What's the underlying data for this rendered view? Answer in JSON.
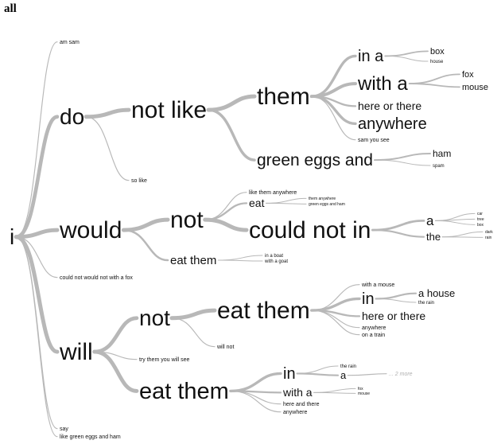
{
  "title": "all",
  "nodes": [
    {
      "id": "root",
      "label": "i"
    },
    {
      "id": "n1",
      "label": "am sam"
    },
    {
      "id": "n2",
      "label": "do"
    },
    {
      "id": "n3",
      "label": "not like"
    },
    {
      "id": "n4",
      "label": "them"
    },
    {
      "id": "n5",
      "label": "in a"
    },
    {
      "id": "n6",
      "label": "box"
    },
    {
      "id": "n7",
      "label": "house"
    },
    {
      "id": "n8",
      "label": "with a"
    },
    {
      "id": "n9",
      "label": "fox"
    },
    {
      "id": "n10",
      "label": "mouse"
    },
    {
      "id": "n11",
      "label": "here or there"
    },
    {
      "id": "n12",
      "label": "anywhere"
    },
    {
      "id": "n13",
      "label": "sam you see"
    },
    {
      "id": "n14",
      "label": "green eggs and"
    },
    {
      "id": "n15",
      "label": "ham"
    },
    {
      "id": "n16",
      "label": "spam"
    },
    {
      "id": "n17",
      "label": "so like"
    },
    {
      "id": "n18",
      "label": "would"
    },
    {
      "id": "n19",
      "label": "not"
    },
    {
      "id": "n20",
      "label": "like them anywhere"
    },
    {
      "id": "n21",
      "label": "eat"
    },
    {
      "id": "n22",
      "label": "them anywhere"
    },
    {
      "id": "n23",
      "label": "green eggs and ham"
    },
    {
      "id": "n24",
      "label": "could not in"
    },
    {
      "id": "n25",
      "label": "a"
    },
    {
      "id": "n26",
      "label": "car"
    },
    {
      "id": "n27",
      "label": "tree"
    },
    {
      "id": "n28",
      "label": "box"
    },
    {
      "id": "n29",
      "label": "the"
    },
    {
      "id": "n30",
      "label": "dark"
    },
    {
      "id": "n31",
      "label": "rain"
    },
    {
      "id": "n32",
      "label": "eat them"
    },
    {
      "id": "n33",
      "label": "in a boat"
    },
    {
      "id": "n34",
      "label": "with a goat"
    },
    {
      "id": "n35",
      "label": "could not would not with a fox"
    },
    {
      "id": "n36",
      "label": "will"
    },
    {
      "id": "n37",
      "label": "not"
    },
    {
      "id": "n38",
      "label": "eat them"
    },
    {
      "id": "n39",
      "label": "with a mouse"
    },
    {
      "id": "n40",
      "label": "in"
    },
    {
      "id": "n41",
      "label": "a house"
    },
    {
      "id": "n42",
      "label": "the rain"
    },
    {
      "id": "n43",
      "label": "here or there"
    },
    {
      "id": "n44",
      "label": "anywhere"
    },
    {
      "id": "n45",
      "label": "on a train"
    },
    {
      "id": "n46",
      "label": "will not"
    },
    {
      "id": "n47",
      "label": "try them you will see"
    },
    {
      "id": "n48",
      "label": "eat them"
    },
    {
      "id": "n49",
      "label": "in"
    },
    {
      "id": "n50",
      "label": "the rain"
    },
    {
      "id": "n51",
      "label": "a"
    },
    {
      "id": "n52",
      "label": "... 2 more"
    },
    {
      "id": "n53",
      "label": "with a"
    },
    {
      "id": "n54",
      "label": "fox"
    },
    {
      "id": "n55",
      "label": "mouse"
    },
    {
      "id": "n56",
      "label": "here and there"
    },
    {
      "id": "n57",
      "label": "anywhere"
    },
    {
      "id": "n58",
      "label": "say"
    },
    {
      "id": "n59",
      "label": "like green eggs and ham"
    }
  ],
  "edges": [
    {
      "from": "root",
      "to": "n1"
    },
    {
      "from": "root",
      "to": "n2"
    },
    {
      "from": "root",
      "to": "n18"
    },
    {
      "from": "root",
      "to": "n35"
    },
    {
      "from": "root",
      "to": "n36"
    },
    {
      "from": "root",
      "to": "n58"
    },
    {
      "from": "root",
      "to": "n59"
    },
    {
      "from": "n2",
      "to": "n3"
    },
    {
      "from": "n2",
      "to": "n17"
    },
    {
      "from": "n3",
      "to": "n4"
    },
    {
      "from": "n3",
      "to": "n14"
    },
    {
      "from": "n4",
      "to": "n5"
    },
    {
      "from": "n4",
      "to": "n8"
    },
    {
      "from": "n4",
      "to": "n11"
    },
    {
      "from": "n4",
      "to": "n12"
    },
    {
      "from": "n4",
      "to": "n13"
    },
    {
      "from": "n5",
      "to": "n6"
    },
    {
      "from": "n5",
      "to": "n7"
    },
    {
      "from": "n8",
      "to": "n9"
    },
    {
      "from": "n8",
      "to": "n10"
    },
    {
      "from": "n14",
      "to": "n15"
    },
    {
      "from": "n14",
      "to": "n16"
    },
    {
      "from": "n18",
      "to": "n19"
    },
    {
      "from": "n18",
      "to": "n32"
    },
    {
      "from": "n19",
      "to": "n20"
    },
    {
      "from": "n19",
      "to": "n21"
    },
    {
      "from": "n19",
      "to": "n24"
    },
    {
      "from": "n21",
      "to": "n22"
    },
    {
      "from": "n21",
      "to": "n23"
    },
    {
      "from": "n24",
      "to": "n25"
    },
    {
      "from": "n24",
      "to": "n29"
    },
    {
      "from": "n25",
      "to": "n26"
    },
    {
      "from": "n25",
      "to": "n27"
    },
    {
      "from": "n25",
      "to": "n28"
    },
    {
      "from": "n29",
      "to": "n30"
    },
    {
      "from": "n29",
      "to": "n31"
    },
    {
      "from": "n32",
      "to": "n33"
    },
    {
      "from": "n32",
      "to": "n34"
    },
    {
      "from": "n36",
      "to": "n37"
    },
    {
      "from": "n36",
      "to": "n47"
    },
    {
      "from": "n36",
      "to": "n48"
    },
    {
      "from": "n37",
      "to": "n38"
    },
    {
      "from": "n37",
      "to": "n46"
    },
    {
      "from": "n38",
      "to": "n39"
    },
    {
      "from": "n38",
      "to": "n40"
    },
    {
      "from": "n38",
      "to": "n43"
    },
    {
      "from": "n38",
      "to": "n44"
    },
    {
      "from": "n38",
      "to": "n45"
    },
    {
      "from": "n40",
      "to": "n41"
    },
    {
      "from": "n40",
      "to": "n42"
    },
    {
      "from": "n48",
      "to": "n49"
    },
    {
      "from": "n48",
      "to": "n53"
    },
    {
      "from": "n48",
      "to": "n56"
    },
    {
      "from": "n48",
      "to": "n57"
    },
    {
      "from": "n49",
      "to": "n50"
    },
    {
      "from": "n49",
      "to": "n51"
    },
    {
      "from": "n51",
      "to": "n52"
    },
    {
      "from": "n53",
      "to": "n54"
    },
    {
      "from": "n53",
      "to": "n55"
    }
  ]
}
